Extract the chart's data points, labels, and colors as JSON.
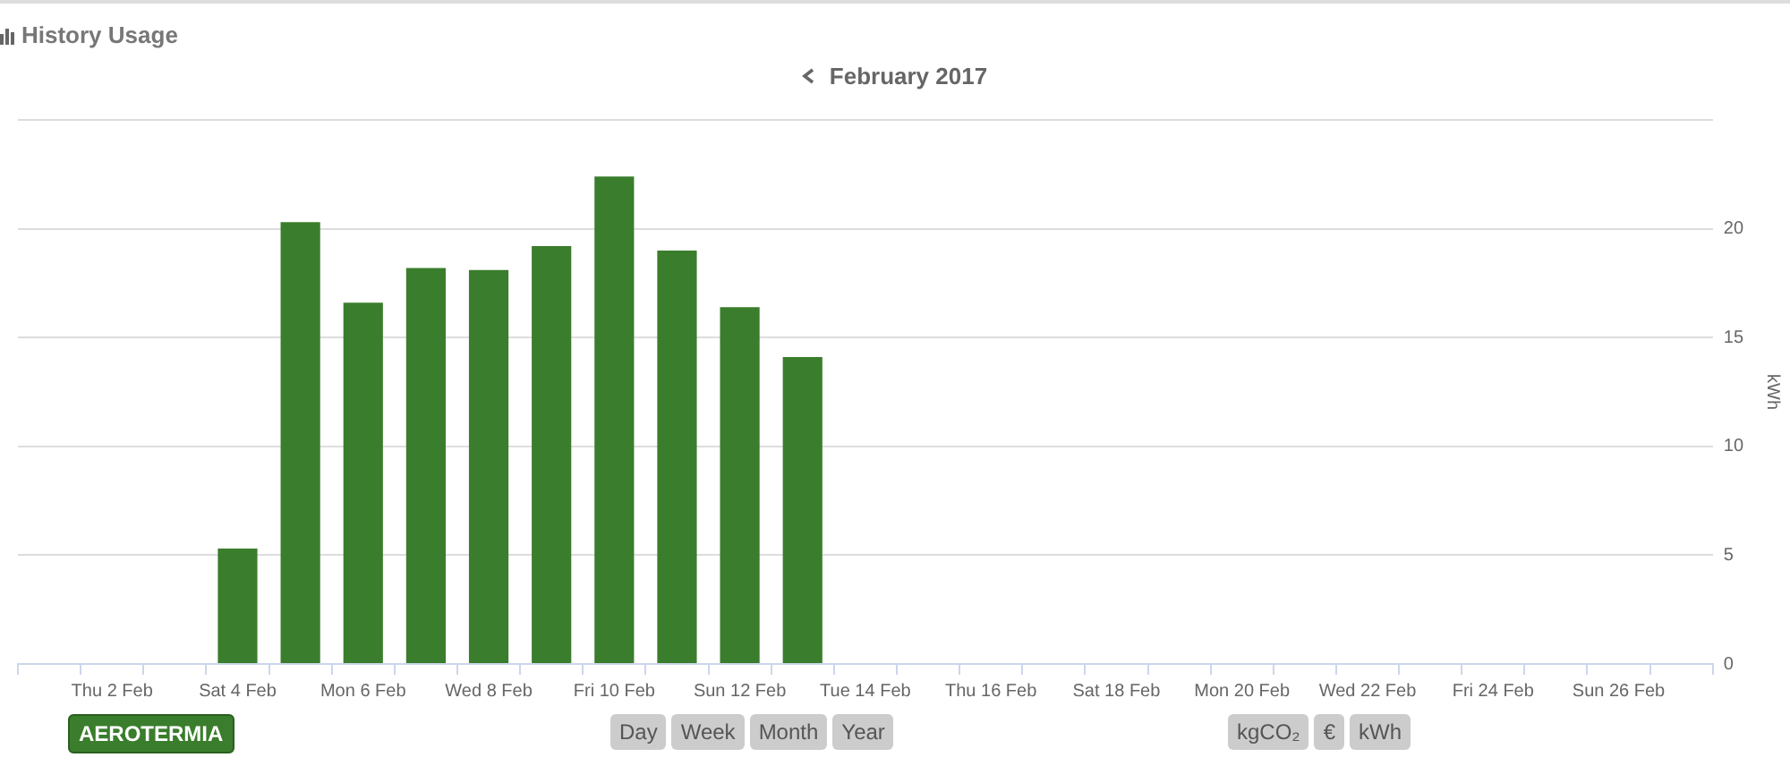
{
  "chart_data": {
    "type": "bar",
    "title": "History Usage",
    "subtitle": "February 2017",
    "ylabel": "kWh",
    "categories": [
      null,
      "Thu 2 Feb",
      null,
      "Sat 4 Feb",
      null,
      "Mon 6 Feb",
      null,
      "Wed 8 Feb",
      null,
      "Fri 10 Feb",
      null,
      "Sun 12 Feb",
      null,
      "Tue 14 Feb",
      null,
      "Thu 16 Feb",
      null,
      "Sat 18 Feb",
      null,
      "Mon 20 Feb",
      null,
      "Wed 22 Feb",
      null,
      "Fri 24 Feb",
      null,
      "Sun 26 Feb",
      null
    ],
    "series": [
      {
        "name": "AEROTERMIA",
        "color": "#3a7d2c",
        "values": [
          null,
          null,
          null,
          5.3,
          20.3,
          16.6,
          18.2,
          18.1,
          19.2,
          22.4,
          19.0,
          16.4,
          14.1,
          null,
          null,
          null,
          null,
          null,
          null,
          null,
          null,
          null,
          null,
          null,
          null,
          null,
          null
        ]
      }
    ],
    "ylim": [
      0,
      25
    ],
    "yticks": [
      0,
      5,
      10,
      15,
      20,
      {
        "value": 25,
        "label": null
      }
    ],
    "grid": "y",
    "legend": "bottom left",
    "annotations": [
      "Day",
      "Week",
      "Month",
      "Year",
      "kgCO₂",
      "€",
      "kWh"
    ]
  }
}
